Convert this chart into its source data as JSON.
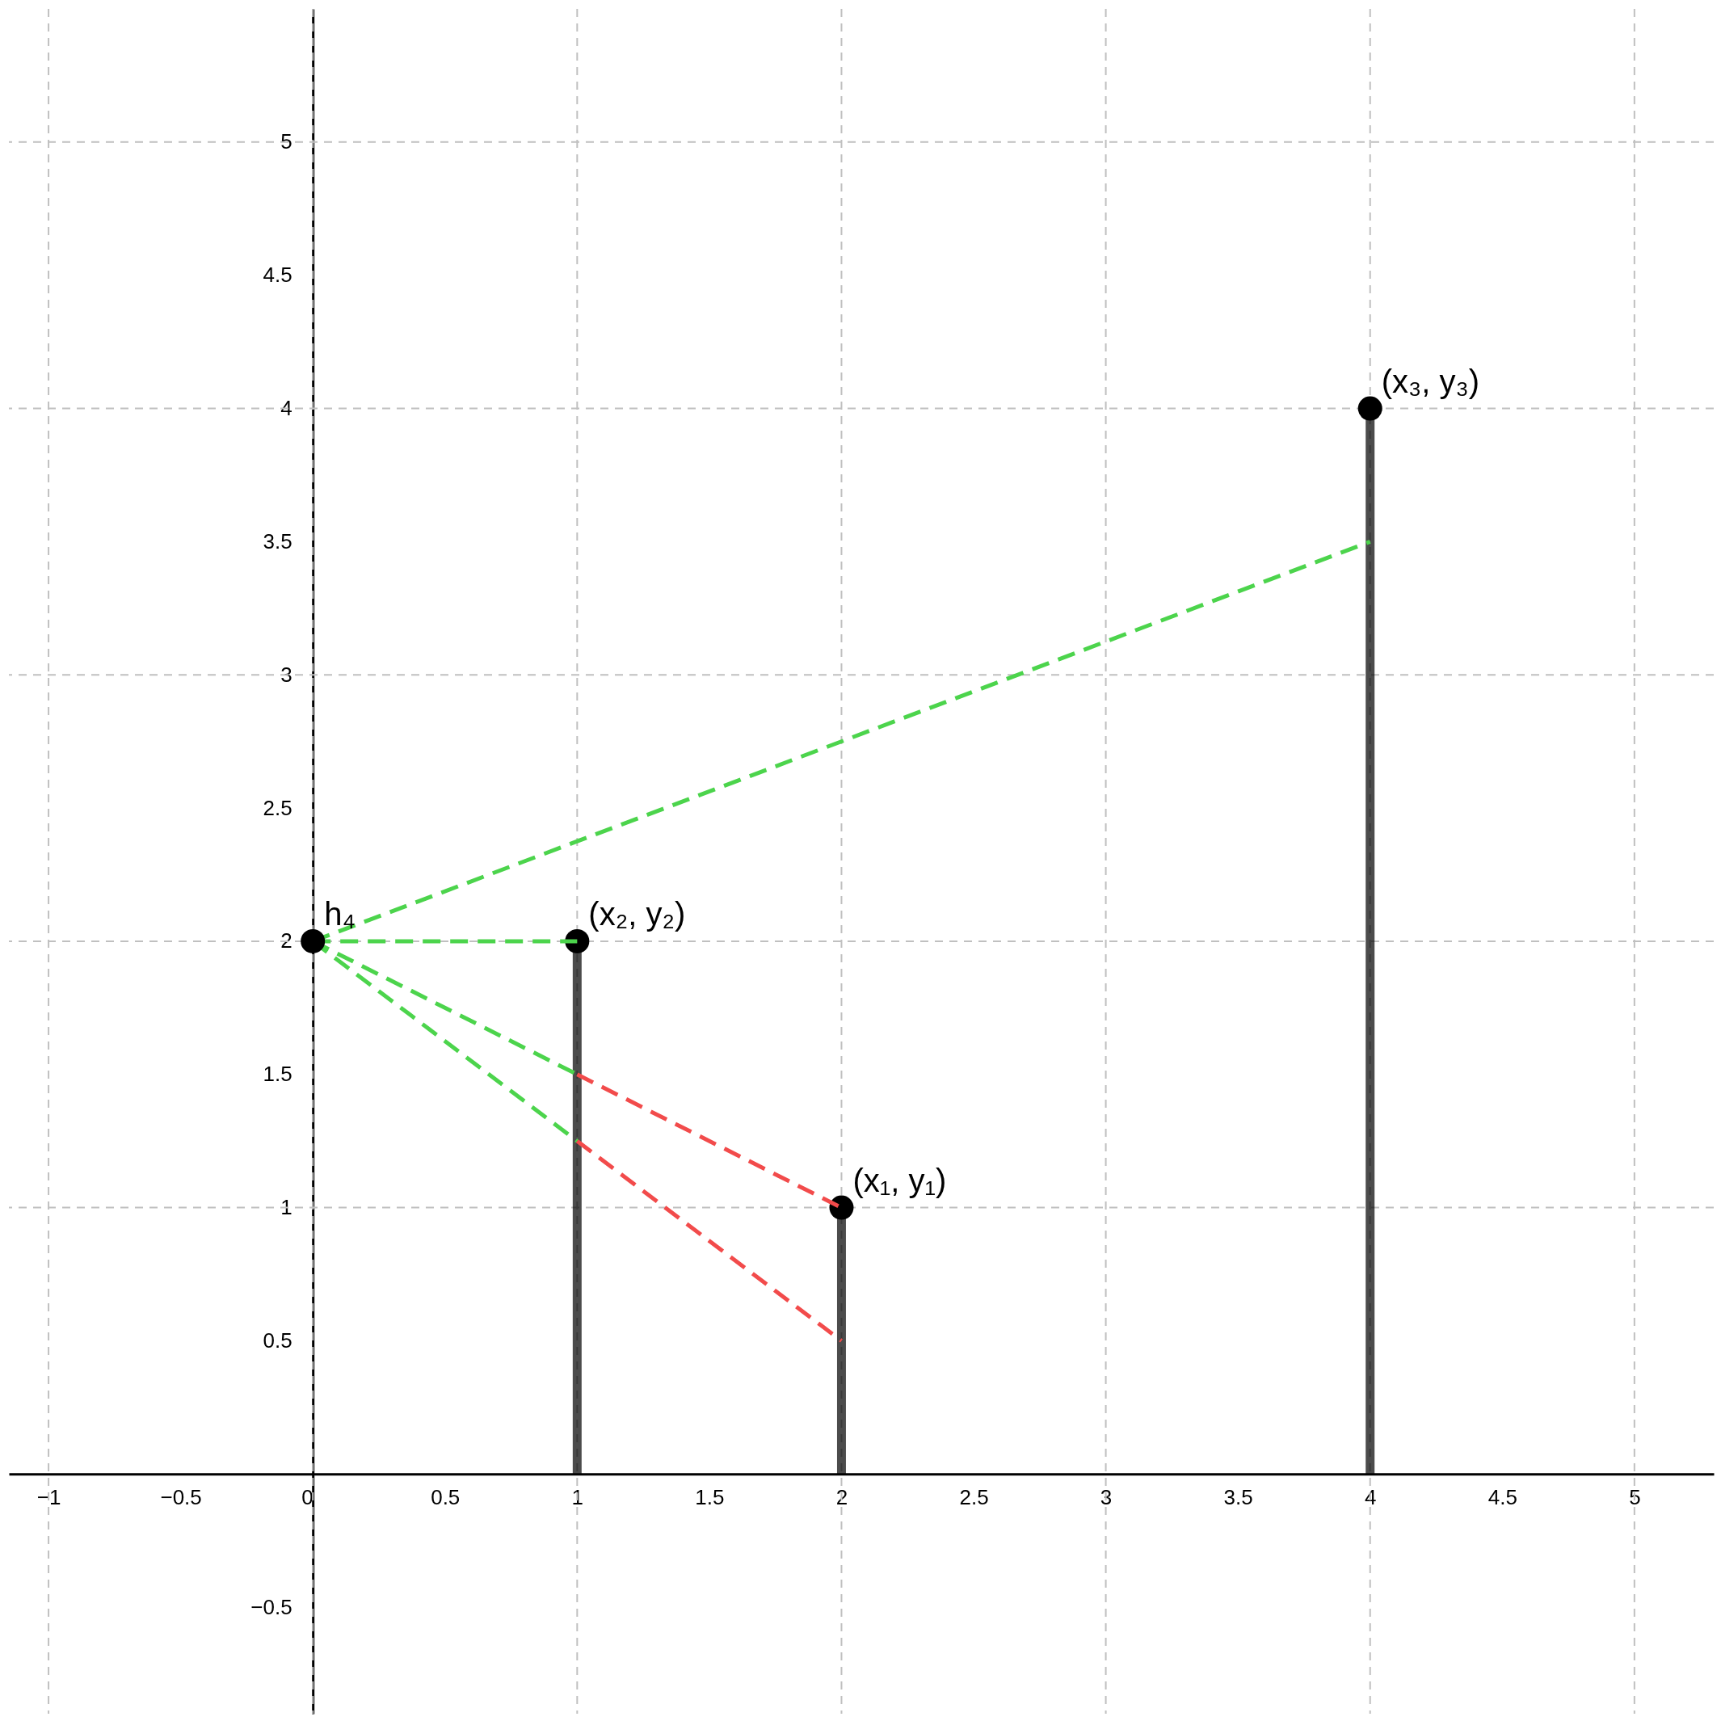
{
  "chart_data": {
    "type": "lollipop",
    "xlim": [
      -1.15,
      5.3
    ],
    "ylim": [
      -0.9,
      5.5
    ],
    "xticks": [
      {
        "value": -1,
        "label": "−1"
      },
      {
        "value": -0.5,
        "label": "−0.5"
      },
      0,
      0.5,
      1,
      1.5,
      2,
      2.5,
      3,
      3.5,
      4,
      4.5,
      5
    ],
    "yticks": [
      {
        "value": -0.5,
        "label": "−0.5"
      },
      0.5,
      1,
      1.5,
      2,
      2.5,
      3,
      3.5,
      4,
      4.5,
      5
    ],
    "grid": true,
    "line_style": "dashed",
    "series": [
      {
        "color": "#000000",
        "marker": "circle",
        "x": [
          1,
          2,
          4
        ],
        "values": [
          2,
          1,
          4
        ]
      },
      {
        "type": "line",
        "color": "#4cd44c",
        "x": [
          0,
          4
        ],
        "values": [
          2,
          3.5
        ]
      },
      {
        "type": "line",
        "color": "#4cd44c",
        "x": [
          0,
          1
        ],
        "values": [
          2,
          2
        ]
      },
      {
        "type": "line",
        "color": "#4cd44c",
        "x": [
          0,
          1
        ],
        "values": [
          2,
          1.5
        ]
      },
      {
        "type": "line",
        "color": "#4cd44c",
        "x": [
          0,
          1
        ],
        "values": [
          2,
          1.25
        ]
      },
      {
        "type": "line",
        "color": "#f24b4b",
        "x": [
          1,
          2
        ],
        "values": [
          1.5,
          1
        ]
      },
      {
        "type": "line",
        "color": "#f24b4b",
        "x": [
          1,
          2
        ],
        "values": [
          1.25,
          0.5
        ]
      },
      {
        "type": "scatter",
        "color": "#000000",
        "marker": "circle",
        "x": [
          0
        ],
        "values": [
          2
        ]
      }
    ],
    "annotations": [
      {
        "text": "h₄",
        "x": 0,
        "y": 2
      },
      {
        "text": "(x₂, y₂)",
        "x": 1,
        "y": 2
      },
      {
        "text": "(x₁, y₁)",
        "x": 2,
        "y": 1
      },
      {
        "text": "(x₃, y₃)",
        "x": 4,
        "y": 4
      }
    ]
  }
}
